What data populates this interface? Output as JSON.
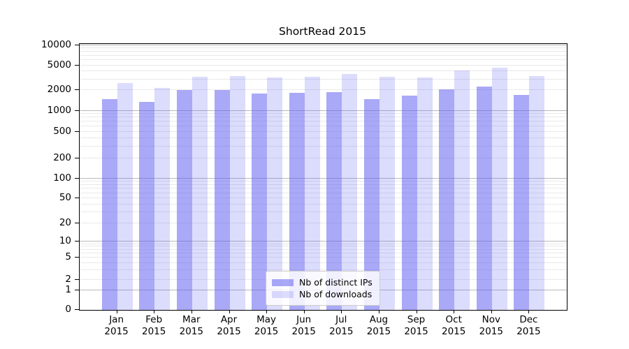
{
  "chart_data": {
    "type": "bar",
    "title": "ShortRead 2015",
    "categories": [
      "Jan 2015",
      "Feb 2015",
      "Mar 2015",
      "Apr 2015",
      "May 2015",
      "Jun 2015",
      "Jul 2015",
      "Aug 2015",
      "Sep 2015",
      "Oct 2015",
      "Nov 2015",
      "Dec 2015"
    ],
    "series": [
      {
        "name": "Nb of distinct IPs",
        "color": "rgba(92,92,240,0.53)",
        "values": [
          1500,
          1350,
          2000,
          2000,
          1800,
          1840,
          1900,
          1500,
          1660,
          2080,
          2270,
          1700
        ]
      },
      {
        "name": "Nb of downloads",
        "color": "rgba(92,92,240,0.21)",
        "values": [
          2600,
          2200,
          3250,
          3350,
          3200,
          3300,
          3600,
          3300,
          3200,
          4100,
          4550,
          3350
        ]
      }
    ],
    "yscale": "symlog",
    "yticks": [
      0,
      1,
      2,
      5,
      10,
      20,
      50,
      100,
      200,
      500,
      1000,
      2000,
      5000,
      10000
    ],
    "ylim": [
      0,
      10000
    ],
    "xlabel": "",
    "ylabel": "",
    "grid": true,
    "legend_position": "bottom-center",
    "colors": {
      "bar_dark_on_white": "#a9a9f4",
      "bar_light_on_white": "#dcdcfa",
      "major_grid": "#b9b9b9",
      "minor_grid": "#e9e9e9",
      "axis": "#000000"
    }
  }
}
